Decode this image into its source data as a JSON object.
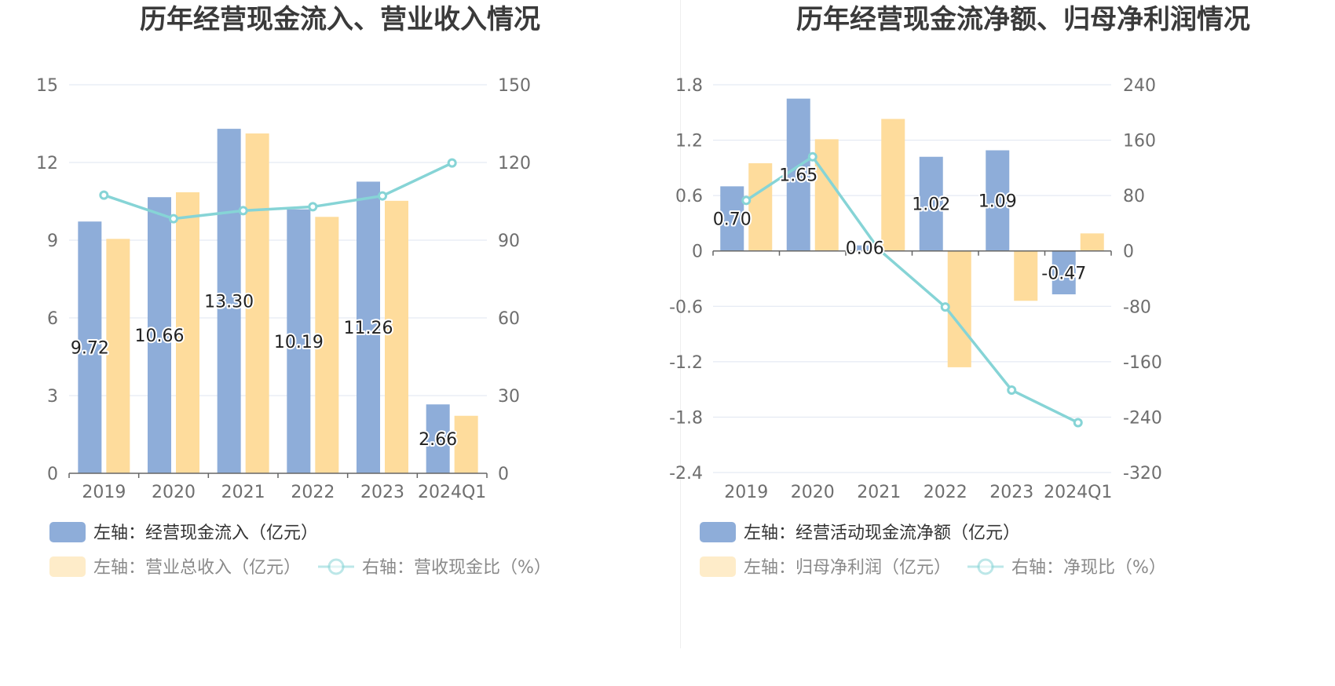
{
  "colors": {
    "inflow_bar": "#8eadd9",
    "revenue_bar": "#fedc9c",
    "ratio_line": "#86d4d6",
    "grid": "#dfe5f0",
    "axis": "#666666"
  },
  "chart_data": [
    {
      "type": "bar",
      "title": "历年经营现金流入、营业收入情况",
      "categories": [
        "2019",
        "2020",
        "2021",
        "2022",
        "2023",
        "2024Q1"
      ],
      "left_axis": {
        "ylim": [
          0,
          15
        ],
        "ticks": [
          "0",
          "3",
          "6",
          "9",
          "12",
          "15"
        ]
      },
      "right_axis": {
        "ylim": [
          0,
          150
        ],
        "ticks": [
          "0",
          "30",
          "60",
          "90",
          "120",
          "150"
        ]
      },
      "grid": true,
      "legend_position": "bottom",
      "series": [
        {
          "name": "左轴：经营现金流入（亿元）",
          "axis": "left",
          "kind": "bar",
          "color": "#8eadd9",
          "values": [
            9.72,
            10.66,
            13.3,
            10.19,
            11.26,
            2.66
          ],
          "labels": [
            "9.72",
            "10.66",
            "13.30",
            "10.19",
            "11.26",
            "2.66"
          ]
        },
        {
          "name": "左轴：营业总收入（亿元）",
          "axis": "left",
          "kind": "bar",
          "color": "#fedc9c",
          "values": [
            9.05,
            10.85,
            13.12,
            9.9,
            10.52,
            2.22
          ]
        },
        {
          "name": "右轴：营收现金比（%）",
          "axis": "right",
          "kind": "line",
          "color": "#86d4d6",
          "values": [
            107.4,
            98.3,
            101.4,
            102.9,
            107.1,
            119.8
          ]
        }
      ]
    },
    {
      "type": "bar",
      "title": "历年经营现金流净额、归母净利润情况",
      "categories": [
        "2019",
        "2020",
        "2021",
        "2022",
        "2023",
        "2024Q1"
      ],
      "left_axis": {
        "ylim": [
          -2.4,
          1.8
        ],
        "ticks": [
          "-2.4",
          "-1.8",
          "-1.2",
          "-0.6",
          "0",
          "0.6",
          "1.2",
          "1.8"
        ]
      },
      "right_axis": {
        "ylim": [
          -320,
          240
        ],
        "ticks": [
          "-320",
          "-240",
          "-160",
          "-80",
          "0",
          "80",
          "160",
          "240"
        ]
      },
      "grid": true,
      "legend_position": "bottom",
      "series": [
        {
          "name": "左轴：经营活动现金流净额（亿元）",
          "axis": "left",
          "kind": "bar",
          "color": "#8eadd9",
          "values": [
            0.7,
            1.65,
            0.06,
            1.02,
            1.09,
            -0.47
          ],
          "labels": [
            "0.70",
            "1.65",
            "0.06",
            "1.02",
            "1.09",
            "-0.47"
          ]
        },
        {
          "name": "左轴：归母净利润（亿元）",
          "axis": "left",
          "kind": "bar",
          "color": "#fedc9c",
          "values": [
            0.95,
            1.21,
            1.43,
            -1.26,
            -0.54,
            0.19
          ]
        },
        {
          "name": "右轴：净现比（%）",
          "axis": "right",
          "kind": "line",
          "color": "#86d4d6",
          "values": [
            73,
            136,
            2,
            -81,
            -201,
            -248
          ]
        }
      ]
    }
  ]
}
